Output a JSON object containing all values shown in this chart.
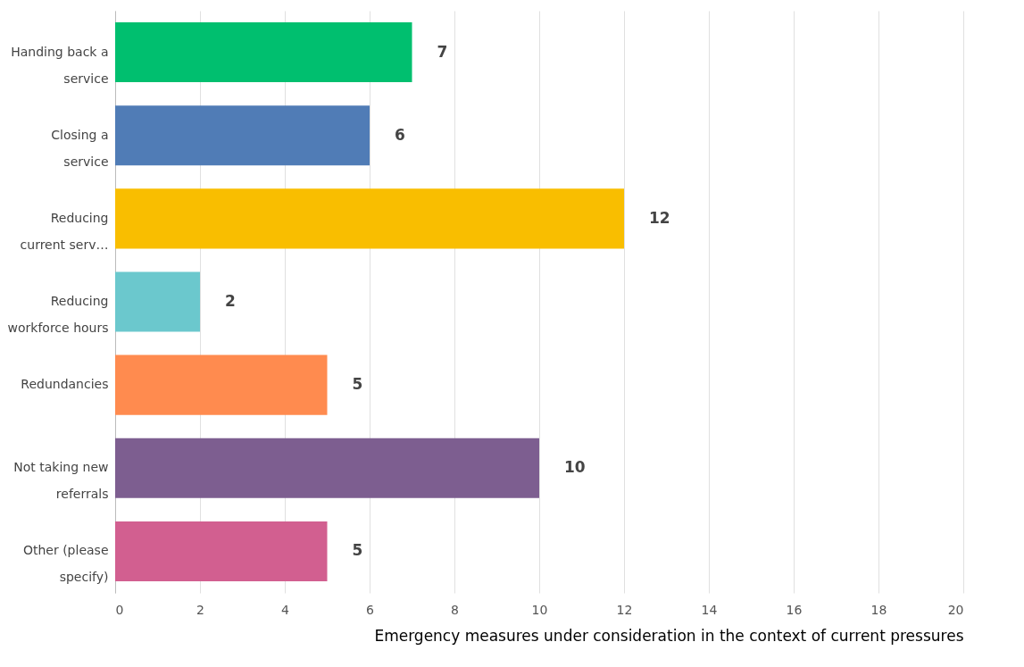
{
  "chart_data": {
    "type": "bar",
    "orientation": "horizontal",
    "xlabel": "Emergency measures under consideration in the context of current pressures",
    "categories": [
      "Handing back a service",
      "Closing a service",
      "Reducing current serv…",
      "Reducing workforce hours",
      "Redundancies",
      "Not taking new referrals",
      "Other (please specify)"
    ],
    "values": [
      7,
      6,
      12,
      2,
      5,
      10,
      5
    ],
    "colors": [
      "#00bf6f",
      "#507cb6",
      "#f9be00",
      "#6bc8cd",
      "#ff8b4f",
      "#7d5e90",
      "#d25f90"
    ],
    "xlim": [
      0,
      20
    ],
    "xticks": [
      0,
      2,
      4,
      6,
      8,
      10,
      12,
      14,
      16,
      18,
      20
    ],
    "grid": "x",
    "data_labels": true
  }
}
